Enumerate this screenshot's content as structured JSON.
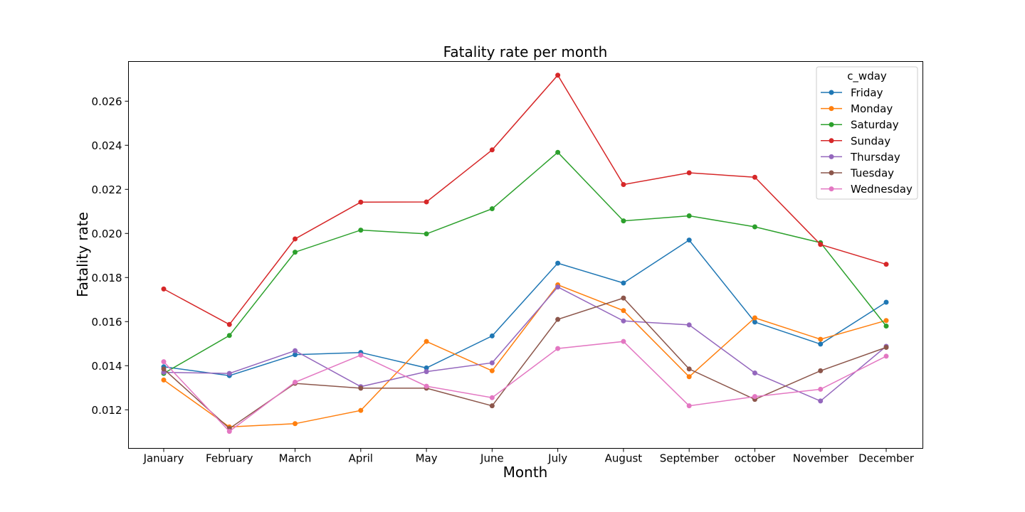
{
  "chart_data": {
    "type": "line",
    "title": "Fatality rate per month",
    "xlabel": "Month",
    "ylabel": "Fatality rate",
    "categories": [
      "January",
      "February",
      "March",
      "April",
      "May",
      "June",
      "July",
      "August",
      "September",
      "october",
      "November",
      "December"
    ],
    "ylim": [
      0.01025,
      0.0278
    ],
    "yticks": [
      0.012,
      0.014,
      0.016,
      0.018,
      0.02,
      0.022,
      0.024,
      0.026
    ],
    "ytick_labels": [
      "0.012",
      "0.014",
      "0.016",
      "0.018",
      "0.020",
      "0.022",
      "0.024",
      "0.026"
    ],
    "grid": false,
    "legend": {
      "title": "c_wday",
      "position": "top-right"
    },
    "series": [
      {
        "name": "Friday",
        "color": "#1f77b4",
        "values": [
          0.01395,
          0.01355,
          0.0145,
          0.0146,
          0.0139,
          0.01535,
          0.01865,
          0.01775,
          0.0197,
          0.01598,
          0.01498,
          0.01688
        ]
      },
      {
        "name": "Monday",
        "color": "#ff7f0e",
        "values": [
          0.01335,
          0.01122,
          0.01137,
          0.01197,
          0.0151,
          0.01377,
          0.01767,
          0.0165,
          0.0135,
          0.01617,
          0.0152,
          0.01605
        ]
      },
      {
        "name": "Saturday",
        "color": "#2ca02c",
        "values": [
          0.01365,
          0.01537,
          0.01915,
          0.02015,
          0.01998,
          0.02112,
          0.02368,
          0.02057,
          0.0208,
          0.0203,
          0.01958,
          0.0158
        ]
      },
      {
        "name": "Sunday",
        "color": "#d62728",
        "values": [
          0.01748,
          0.01587,
          0.01975,
          0.02142,
          0.02143,
          0.02379,
          0.02718,
          0.02222,
          0.02275,
          0.02255,
          0.0195,
          0.0186
        ]
      },
      {
        "name": "Thursday",
        "color": "#9467bd",
        "values": [
          0.0137,
          0.01365,
          0.01468,
          0.01305,
          0.01373,
          0.01413,
          0.01757,
          0.01603,
          0.01585,
          0.01367,
          0.0124,
          0.01488
        ]
      },
      {
        "name": "Tuesday",
        "color": "#8c564b",
        "values": [
          0.01385,
          0.01115,
          0.0132,
          0.01298,
          0.01298,
          0.01218,
          0.0161,
          0.01707,
          0.01385,
          0.01247,
          0.01377,
          0.01483
        ]
      },
      {
        "name": "Wednesday",
        "color": "#e377c2",
        "values": [
          0.01418,
          0.01102,
          0.01325,
          0.01448,
          0.01307,
          0.01255,
          0.01478,
          0.0151,
          0.01218,
          0.0126,
          0.01293,
          0.01443
        ]
      }
    ]
  }
}
